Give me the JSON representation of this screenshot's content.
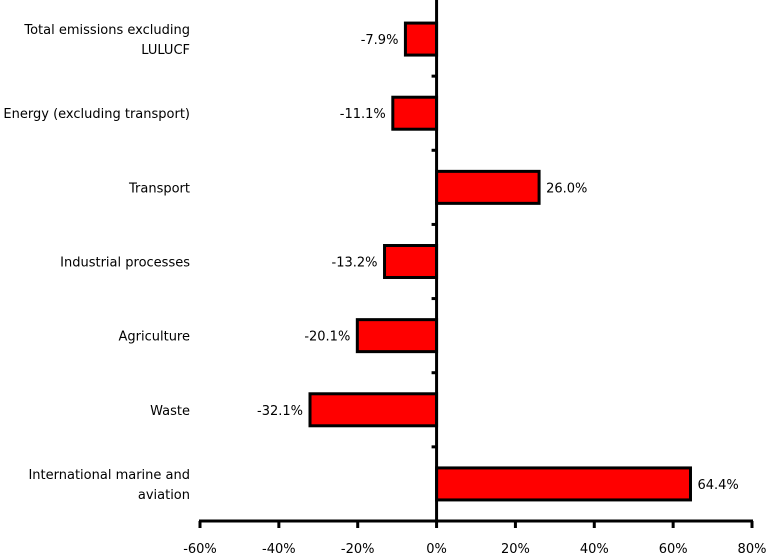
{
  "chart_data": {
    "type": "bar",
    "orientation": "horizontal",
    "categories": [
      [
        "Total emissions excluding",
        "LULUCF"
      ],
      [
        "Energy (excluding transport)"
      ],
      [
        "Transport"
      ],
      [
        "Industrial processes"
      ],
      [
        "Agriculture"
      ],
      [
        "Waste"
      ],
      [
        "International marine and",
        "aviation"
      ]
    ],
    "values": [
      -7.9,
      -11.1,
      26.0,
      -13.2,
      -20.1,
      -32.1,
      64.4
    ],
    "value_labels": [
      "-7.9%",
      "-11.1%",
      "26.0%",
      "-13.2%",
      "-20.1%",
      "-32.1%",
      "64.4%"
    ],
    "xlim": [
      -60,
      80
    ],
    "xticks": [
      -60,
      -40,
      -20,
      0,
      20,
      40,
      60,
      80
    ],
    "xtick_labels": [
      "-60%",
      "-40%",
      "-20%",
      "0%",
      "20%",
      "40%",
      "60%",
      "80%"
    ],
    "title": "",
    "xlabel": "",
    "ylabel": "",
    "grid": false,
    "bar_color": "#ff0000",
    "bar_edge_color": "#000000"
  }
}
